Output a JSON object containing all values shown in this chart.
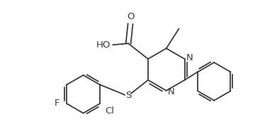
{
  "background": "#ffffff",
  "bond_color": "#3a3a3a",
  "fig_width": 3.91,
  "fig_height": 1.96,
  "dpi": 100,
  "xlim": [
    0,
    3.91
  ],
  "ylim": [
    0,
    1.96
  ]
}
